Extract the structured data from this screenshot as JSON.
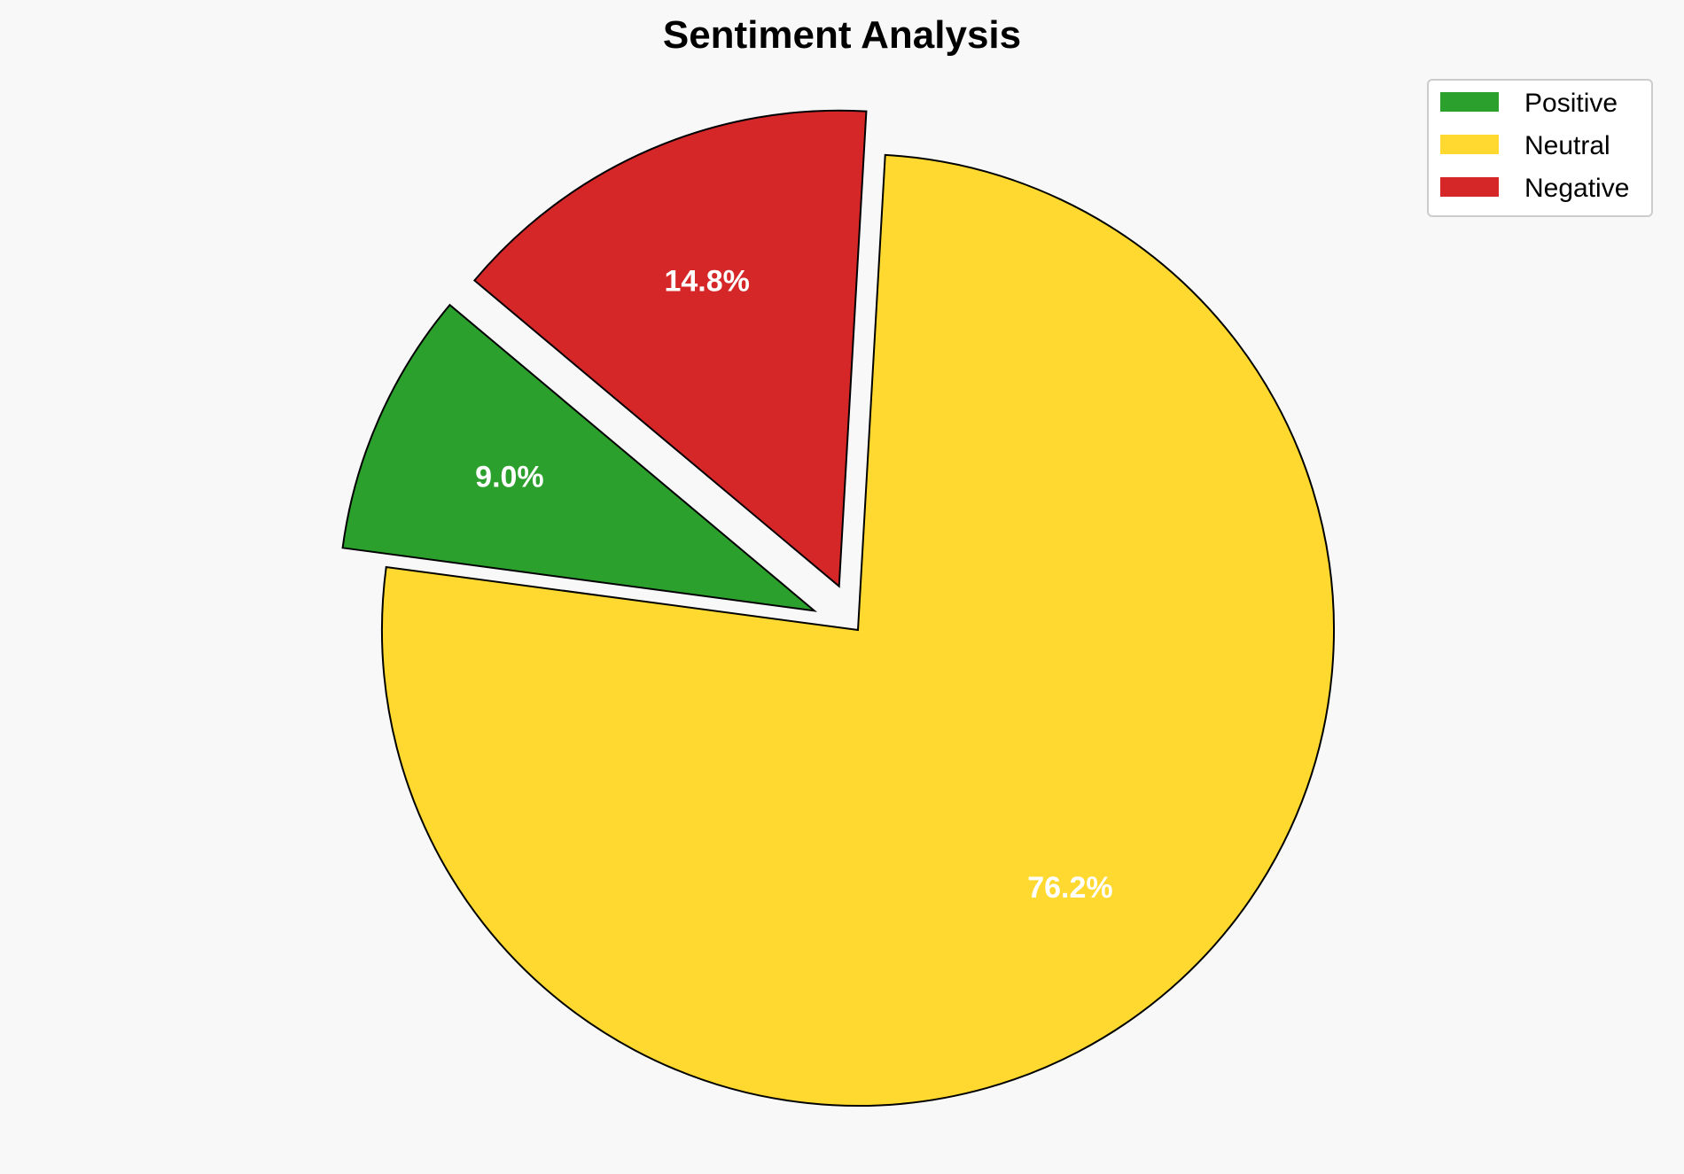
{
  "chart_data": {
    "type": "pie",
    "title": "Sentiment Analysis",
    "categories": [
      "Positive",
      "Neutral",
      "Negative"
    ],
    "values": [
      9.0,
      76.2,
      14.8
    ],
    "labels": [
      "9.0%",
      "76.2%",
      "14.8%"
    ],
    "colors": [
      "#2ca02c",
      "#ffd92f",
      "#d62728"
    ],
    "explode": [
      0.1,
      0,
      0.1
    ],
    "startangle": 140,
    "edgecolor": "#000000",
    "legend_placement": "top-right"
  }
}
